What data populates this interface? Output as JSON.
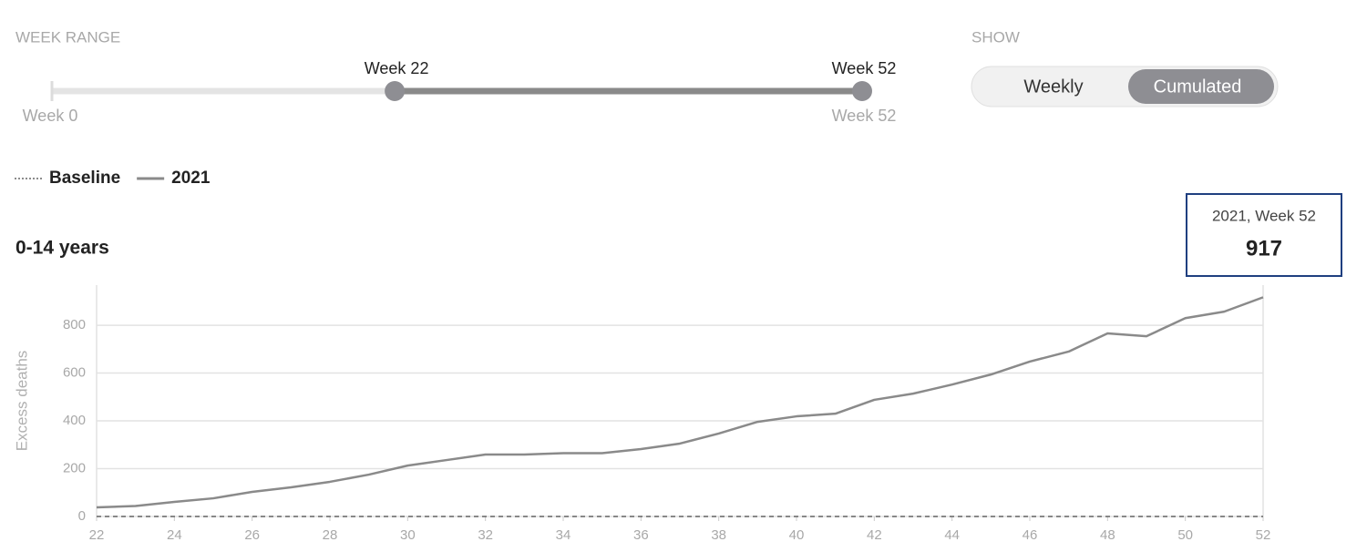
{
  "controls": {
    "week_range": {
      "label": "WEEK RANGE",
      "min": {
        "value": 0,
        "label": "Week 0"
      },
      "max": {
        "value": 52,
        "label": "Week 52"
      },
      "from": {
        "value": 22,
        "label": "Week 22"
      },
      "to": {
        "value": 52,
        "label": "Week 52"
      }
    },
    "show": {
      "label": "SHOW",
      "options": [
        "Weekly",
        "Cumulated"
      ],
      "selected": 1
    }
  },
  "chart_data": {
    "type": "line",
    "title": "0-14 years",
    "y_label": "Excess deaths",
    "x": [
      22,
      23,
      24,
      25,
      26,
      27,
      28,
      29,
      30,
      31,
      32,
      33,
      34,
      35,
      36,
      37,
      38,
      39,
      40,
      41,
      42,
      43,
      44,
      45,
      46,
      47,
      48,
      49,
      50,
      51,
      52
    ],
    "series": [
      {
        "name": "Baseline",
        "color": "#666666",
        "line_style": "dashed",
        "values": [
          0,
          0,
          0,
          0,
          0,
          0,
          0,
          0,
          0,
          0,
          0,
          0,
          0,
          0,
          0,
          0,
          0,
          0,
          0,
          0,
          0,
          0,
          0,
          0,
          0,
          0,
          0,
          0,
          0,
          0,
          0
        ]
      },
      {
        "name": "2021",
        "color": "#8a8a8a",
        "line_style": "solid",
        "values": [
          38,
          44,
          61,
          76,
          103,
          122,
          145,
          175,
          213,
          236,
          259,
          259,
          265,
          265,
          282,
          305,
          347,
          396,
          419,
          430,
          488,
          514,
          552,
          594,
          648,
          690,
          766,
          754,
          830,
          857,
          917
        ]
      }
    ],
    "xlim": [
      22,
      52
    ],
    "xticks": [
      22,
      24,
      26,
      28,
      30,
      32,
      34,
      36,
      38,
      40,
      42,
      44,
      46,
      48,
      50,
      52
    ],
    "ylim": [
      0,
      968
    ],
    "yticks": [
      0,
      200,
      400,
      600,
      800
    ],
    "grid": true,
    "tooltip": {
      "title": "2021, Week 52",
      "value": 917
    }
  }
}
